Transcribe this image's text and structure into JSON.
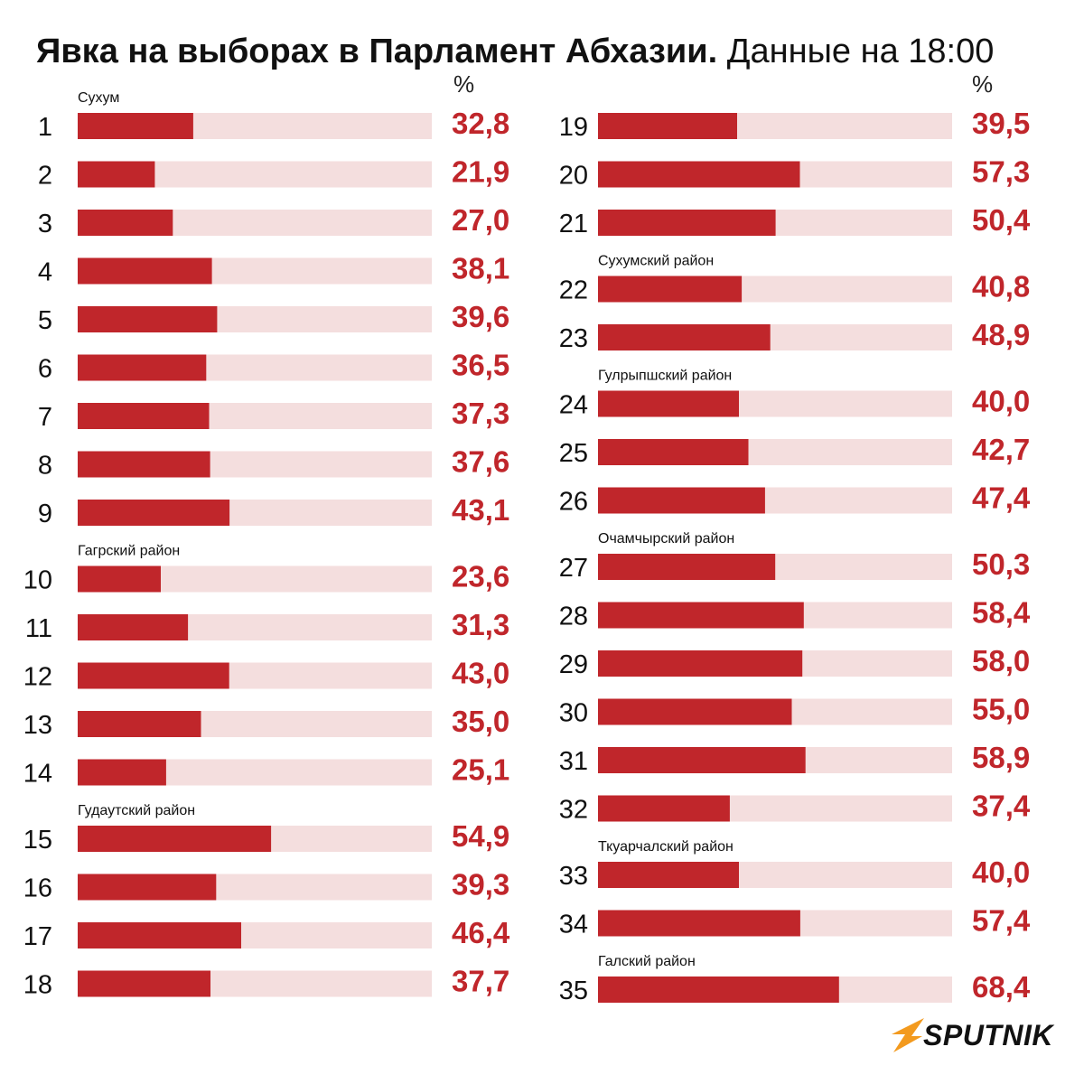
{
  "title": {
    "bold": "Явка на выборах в Парламент Абхазии.",
    "normal": "Данные на 18:00"
  },
  "unit_label": "%",
  "logo": {
    "text": "SPUTNIK"
  },
  "colors": {
    "bar": "#c0262b",
    "track": "#f4dede",
    "value": "#c0262b"
  },
  "chart_data": {
    "type": "bar",
    "orientation": "horizontal",
    "title": "Явка на выборах в Парламент Абхазии. Данные на 18:00",
    "unit": "%",
    "xlim": [
      0,
      100
    ],
    "groups": [
      {
        "name": "Сухум",
        "items": [
          {
            "district": "1",
            "value": 32.8,
            "label": "32,8"
          },
          {
            "district": "2",
            "value": 21.9,
            "label": "21,9"
          },
          {
            "district": "3",
            "value": 27.0,
            "label": "27,0"
          },
          {
            "district": "4",
            "value": 38.1,
            "label": "38,1"
          },
          {
            "district": "5",
            "value": 39.6,
            "label": "39,6"
          },
          {
            "district": "6",
            "value": 36.5,
            "label": "36,5"
          },
          {
            "district": "7",
            "value": 37.3,
            "label": "37,3"
          },
          {
            "district": "8",
            "value": 37.6,
            "label": "37,6"
          },
          {
            "district": "9",
            "value": 43.1,
            "label": "43,1"
          }
        ]
      },
      {
        "name": "Гагрский район",
        "items": [
          {
            "district": "10",
            "value": 23.6,
            "label": "23,6"
          },
          {
            "district": "11",
            "value": 31.3,
            "label": "31,3"
          },
          {
            "district": "12",
            "value": 43.0,
            "label": "43,0"
          },
          {
            "district": "13",
            "value": 35.0,
            "label": "35,0"
          },
          {
            "district": "14",
            "value": 25.1,
            "label": "25,1"
          }
        ]
      },
      {
        "name": "Гудаутский район",
        "items": [
          {
            "district": "15",
            "value": 54.9,
            "label": "54,9"
          },
          {
            "district": "16",
            "value": 39.3,
            "label": "39,3"
          },
          {
            "district": "17",
            "value": 46.4,
            "label": "46,4"
          },
          {
            "district": "18",
            "value": 37.7,
            "label": "37,7"
          },
          {
            "district": "19",
            "value": 39.5,
            "label": "39,5"
          },
          {
            "district": "20",
            "value": 57.3,
            "label": "57,3"
          },
          {
            "district": "21",
            "value": 50.4,
            "label": "50,4"
          }
        ]
      },
      {
        "name": "Сухумский район",
        "items": [
          {
            "district": "22",
            "value": 40.8,
            "label": "40,8"
          },
          {
            "district": "23",
            "value": 48.9,
            "label": "48,9"
          }
        ]
      },
      {
        "name": "Гулрыпшский район",
        "items": [
          {
            "district": "24",
            "value": 40.0,
            "label": "40,0"
          },
          {
            "district": "25",
            "value": 42.7,
            "label": "42,7"
          },
          {
            "district": "26",
            "value": 47.4,
            "label": "47,4"
          }
        ]
      },
      {
        "name": "Очамчырский район",
        "items": [
          {
            "district": "27",
            "value": 50.3,
            "label": "50,3"
          },
          {
            "district": "28",
            "value": 58.4,
            "label": "58,4"
          },
          {
            "district": "29",
            "value": 58.0,
            "label": "58,0"
          },
          {
            "district": "30",
            "value": 55.0,
            "label": "55,0"
          },
          {
            "district": "31",
            "value": 58.9,
            "label": "58,9"
          },
          {
            "district": "32",
            "value": 37.4,
            "label": "37,4"
          }
        ]
      },
      {
        "name": "Ткуарчалский район",
        "items": [
          {
            "district": "33",
            "value": 40.0,
            "label": "40,0"
          },
          {
            "district": "34",
            "value": 57.4,
            "label": "57,4"
          }
        ]
      },
      {
        "name": "Галский район",
        "items": [
          {
            "district": "35",
            "value": 68.4,
            "label": "68,4"
          }
        ]
      }
    ]
  }
}
